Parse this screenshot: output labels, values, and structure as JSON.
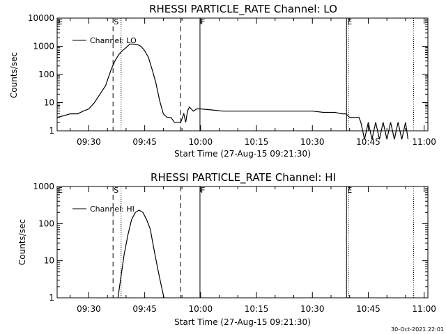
{
  "timestamp": "30-Oct-2021 22:01",
  "chart_data": [
    {
      "type": "line",
      "title": "RHESSI PARTICLE_RATE Channel: LO",
      "xlabel": "Start Time (27-Aug-15 09:21:30)",
      "ylabel": "Counts/sec",
      "yscale": "log",
      "ylim": [
        1,
        10000
      ],
      "xlim": [
        "09:21:30",
        "11:01:00"
      ],
      "x_ticks": [
        "09:30",
        "09:45",
        "10:00",
        "10:15",
        "10:30",
        "10:45",
        "11:00"
      ],
      "y_ticks": [
        "1",
        "10",
        "100",
        "1000",
        "10000"
      ],
      "legend": {
        "label": "Channel: LO",
        "position": "top-left"
      },
      "markers": [
        {
          "label": "E",
          "time": "09:21:30",
          "style": "dotted"
        },
        {
          "label": "S",
          "time": "09:36:30",
          "style": "dashed"
        },
        {
          "label": "",
          "time": "09:38:40",
          "style": "dotted"
        },
        {
          "label": "",
          "time": "09:54:40",
          "style": "dashed"
        },
        {
          "label": "F",
          "time": "09:59:50",
          "style": "solid"
        },
        {
          "label": "E",
          "time": "10:39:10",
          "style": "solid"
        },
        {
          "label": "",
          "time": "10:39:40",
          "style": "dotted"
        },
        {
          "label": "",
          "time": "10:57:10",
          "style": "dotted"
        }
      ],
      "series": [
        {
          "name": "Channel: LO",
          "x": [
            "09:21:30",
            "09:23:30",
            "09:25:00",
            "09:27:00",
            "09:28:30",
            "09:30:00",
            "09:31:30",
            "09:33:00",
            "09:34:30",
            "09:36:00",
            "09:37:00",
            "09:38:00",
            "09:39:00",
            "09:40:00",
            "09:41:00",
            "09:42:00",
            "09:43:00",
            "09:44:00",
            "09:45:00",
            "09:46:00",
            "09:47:00",
            "09:48:00",
            "09:49:00",
            "09:50:00",
            "09:51:00",
            "09:52:00",
            "09:53:00",
            "09:54:00",
            "09:54:40",
            "09:55:30",
            "09:56:00",
            "09:56:30",
            "09:57:00",
            "09:57:30",
            "09:58:00",
            "09:59:00",
            "10:00:00",
            "10:03:00",
            "10:06:00",
            "10:09:00",
            "10:12:00",
            "10:15:00",
            "10:18:00",
            "10:21:00",
            "10:24:00",
            "10:27:00",
            "10:30:00",
            "10:33:00",
            "10:36:00",
            "10:38:00",
            "10:39:00",
            "10:40:00",
            "10:42:30",
            "10:43:00",
            "10:44:00",
            "10:45:00",
            "10:46:00",
            "10:47:00",
            "10:48:00",
            "10:49:00",
            "10:50:00",
            "10:51:00",
            "10:52:00",
            "10:53:00",
            "10:54:00",
            "10:55:00",
            "10:55:40"
          ],
          "y": [
            3,
            3.5,
            4,
            4,
            5,
            6,
            10,
            20,
            40,
            150,
            300,
            500,
            700,
            900,
            1200,
            1200,
            1150,
            1000,
            700,
            400,
            150,
            50,
            12,
            4,
            3,
            3,
            2,
            2,
            2,
            4,
            2,
            5,
            7,
            6,
            5,
            6,
            6,
            5.5,
            5,
            5,
            5,
            5,
            5,
            5,
            5,
            5,
            5,
            4.5,
            4.5,
            4,
            4,
            3,
            3,
            2,
            0.5,
            2,
            0.5,
            2,
            0.5,
            2,
            0.5,
            2,
            0.5,
            2,
            0.5,
            2,
            0.5
          ]
        }
      ]
    },
    {
      "type": "line",
      "title": "RHESSI PARTICLE_RATE Channel: HI",
      "xlabel": "Start Time (27-Aug-15 09:21:30)",
      "ylabel": "Counts/sec",
      "yscale": "log",
      "ylim": [
        1,
        1000
      ],
      "xlim": [
        "09:21:30",
        "11:01:00"
      ],
      "x_ticks": [
        "09:30",
        "09:45",
        "10:00",
        "10:15",
        "10:30",
        "10:45",
        "11:00"
      ],
      "y_ticks": [
        "1",
        "10",
        "100",
        "1000"
      ],
      "legend": {
        "label": "Channel: HI",
        "position": "top-left"
      },
      "markers": [
        {
          "label": "E",
          "time": "09:21:30",
          "style": "dotted"
        },
        {
          "label": "S",
          "time": "09:36:30",
          "style": "dashed"
        },
        {
          "label": "",
          "time": "09:38:40",
          "style": "dotted"
        },
        {
          "label": "",
          "time": "09:54:40",
          "style": "dashed"
        },
        {
          "label": "F",
          "time": "09:59:50",
          "style": "solid"
        },
        {
          "label": "E",
          "time": "10:39:10",
          "style": "solid"
        },
        {
          "label": "",
          "time": "10:39:40",
          "style": "dotted"
        },
        {
          "label": "",
          "time": "10:57:10",
          "style": "dotted"
        }
      ],
      "series": [
        {
          "name": "Channel: HI",
          "x": [
            "09:37:50",
            "09:38:30",
            "09:39:30",
            "09:40:30",
            "09:41:30",
            "09:42:30",
            "09:43:30",
            "09:44:30",
            "09:45:30",
            "09:46:30",
            "09:47:30",
            "09:48:30",
            "09:49:30",
            "09:50:10"
          ],
          "y": [
            1,
            3,
            15,
            50,
            130,
            200,
            230,
            200,
            130,
            70,
            20,
            6,
            2,
            1
          ]
        }
      ]
    }
  ]
}
